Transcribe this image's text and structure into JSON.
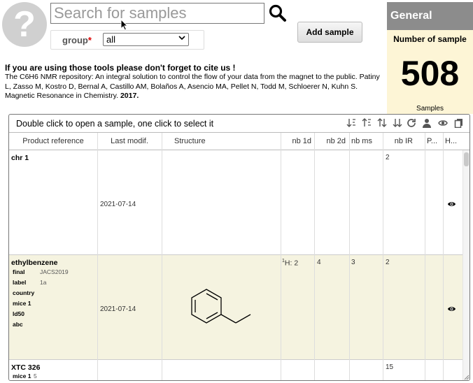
{
  "search": {
    "placeholder": "Search for samples"
  },
  "group": {
    "label": "group",
    "required_mark": "*",
    "selected": "all"
  },
  "toolbar": {
    "add_sample": "Add sample"
  },
  "general": {
    "title": "General",
    "count_label": "Number of sample",
    "count_value": "508",
    "count_unit": "Samples"
  },
  "citation": {
    "heading": "If you are using those tools please don't forget to cite us !",
    "text": "The C6H6 NMR repository: An integral solution to control the flow of your data from the magnet to the public. Patiny L, Zasso M, Kostro D, Bernal A, Castillo AM, Bolaños A, Asencio MA, Pellet N, Todd M, Schloerer N, Kuhn S. Magnetic Resonance in Chemistry.",
    "year": "2017."
  },
  "table": {
    "hint": "Double click to open a sample, one click to select it",
    "toolbar_icons": [
      "sort-ascending-icon",
      "sort-descending-icon",
      "sort-up-icon",
      "sort-down-icon",
      "refresh-icon",
      "user-icon",
      "eye-icon",
      "copy-icon"
    ],
    "columns": [
      "Product reference",
      "Last modif.",
      "Structure",
      "nb 1d",
      "nb 2d",
      "nb ms",
      "nb IR",
      "P...",
      "H..."
    ],
    "rows": [
      {
        "name": "chr 1",
        "modified": "2021-07-14",
        "nb1d": "",
        "nb2d": "",
        "nbms": "",
        "nbir": "2",
        "fields": []
      },
      {
        "name": "ethylbenzene",
        "modified": "2021-07-14",
        "nb1d_sup": "1",
        "nb1d": "H: 2",
        "nb2d": "4",
        "nbms": "3",
        "nbir": "2",
        "fields": [
          {
            "k": "final",
            "v": "JACS2019"
          },
          {
            "k": "label",
            "v": "1a"
          },
          {
            "k": "country",
            "v": ""
          },
          {
            "k": "mice 1",
            "v": ""
          },
          {
            "k": "ld50",
            "v": ""
          },
          {
            "k": "abc",
            "v": ""
          }
        ]
      },
      {
        "name": "XTC 326",
        "modified": "",
        "nb1d": "",
        "nb2d": "",
        "nbms": "",
        "nbir": "15",
        "fields": [
          {
            "k": "mice 1",
            "v": "5"
          }
        ]
      }
    ]
  },
  "colors": {
    "general_header": "#8c8c8c",
    "general_body": "#fdf5d6",
    "selected_row": "#f5f3e0",
    "required": "#dd0000"
  }
}
